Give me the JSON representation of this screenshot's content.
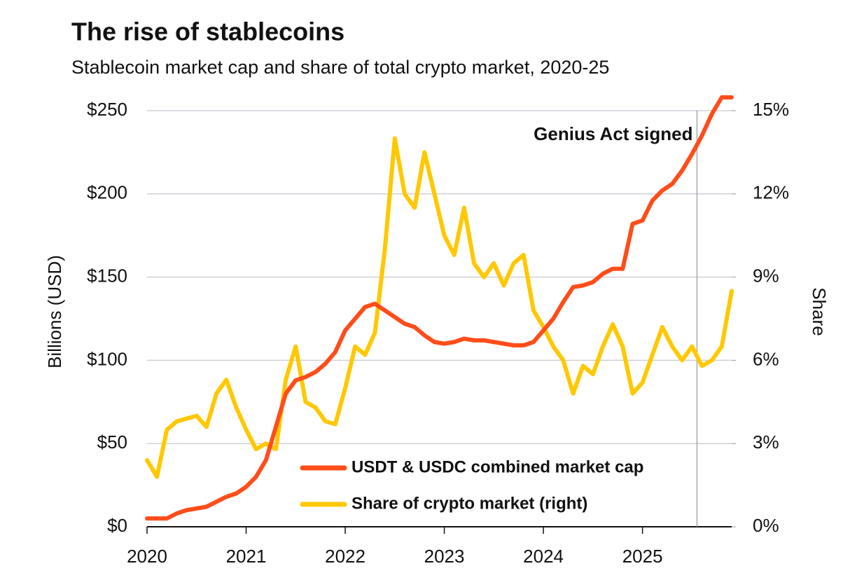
{
  "chart_data": {
    "type": "line",
    "title": "The rise of stablecoins",
    "subtitle": "Stablecoin market cap and share of total crypto market, 2020-25",
    "y_label": "Billions (USD)",
    "y2_label": "Share",
    "x": [
      2020.0,
      2020.1,
      2020.2,
      2020.3,
      2020.4,
      2020.5,
      2020.6,
      2020.7,
      2020.8,
      2020.9,
      2021.0,
      2021.1,
      2021.2,
      2021.3,
      2021.4,
      2021.5,
      2021.6,
      2021.7,
      2021.8,
      2021.9,
      2022.0,
      2022.1,
      2022.2,
      2022.3,
      2022.4,
      2022.5,
      2022.6,
      2022.7,
      2022.8,
      2022.9,
      2023.0,
      2023.1,
      2023.2,
      2023.3,
      2023.4,
      2023.5,
      2023.6,
      2023.7,
      2023.8,
      2023.9,
      2024.0,
      2024.1,
      2024.2,
      2024.3,
      2024.4,
      2024.5,
      2024.6,
      2024.7,
      2024.8,
      2024.9,
      2025.0,
      2025.1,
      2025.2,
      2025.3,
      2025.4,
      2025.5,
      2025.6,
      2025.7,
      2025.8,
      2025.9
    ],
    "series": [
      {
        "name": "USDT & USDC combined market cap",
        "color": "#ff4d1a",
        "axis": "y",
        "values": [
          5,
          5,
          5,
          8,
          10,
          11,
          12,
          15,
          18,
          20,
          24,
          30,
          40,
          60,
          80,
          88,
          90,
          93,
          98,
          105,
          118,
          125,
          132,
          134,
          130,
          126,
          122,
          120,
          115,
          111,
          110,
          111,
          113,
          112,
          112,
          111,
          110,
          109,
          109,
          111,
          118,
          125,
          135,
          144,
          145,
          147,
          152,
          155,
          155,
          182,
          184,
          196,
          202,
          206,
          214,
          224,
          235,
          248,
          258,
          258
        ]
      },
      {
        "name": "Share of crypto market (right)",
        "color": "#ffc800",
        "axis": "y2",
        "values": [
          2.4,
          1.8,
          3.5,
          3.8,
          3.9,
          4.0,
          3.6,
          4.8,
          5.3,
          4.3,
          3.5,
          2.8,
          3.0,
          2.8,
          5.3,
          6.5,
          4.5,
          4.3,
          3.8,
          3.7,
          5.0,
          6.5,
          6.2,
          7.0,
          10.0,
          14.0,
          12.0,
          11.5,
          13.5,
          12.0,
          10.5,
          9.8,
          11.5,
          9.5,
          9.0,
          9.5,
          8.7,
          9.5,
          9.8,
          7.8,
          7.2,
          6.5,
          6.0,
          4.8,
          5.8,
          5.5,
          6.5,
          7.3,
          6.5,
          4.8,
          5.2,
          6.2,
          7.2,
          6.5,
          6.0,
          6.5,
          5.8,
          6.0,
          6.5,
          8.5
        ]
      }
    ],
    "xlim": [
      2020,
      2025.9
    ],
    "xticks": [
      2020,
      2021,
      2022,
      2023,
      2024,
      2025
    ],
    "ylim": [
      0,
      250
    ],
    "yticks": [
      {
        "value": 0,
        "label": "$0"
      },
      {
        "value": 50,
        "label": "$50"
      },
      {
        "value": 100,
        "label": "$100"
      },
      {
        "value": 150,
        "label": "$150"
      },
      {
        "value": 200,
        "label": "$200"
      },
      {
        "value": 250,
        "label": "$250"
      }
    ],
    "y2lim": [
      0,
      15
    ],
    "y2ticks": [
      {
        "value": 0,
        "label": "0%"
      },
      {
        "value": 3,
        "label": "3%"
      },
      {
        "value": 6,
        "label": "6%"
      },
      {
        "value": 9,
        "label": "9%"
      },
      {
        "value": 12,
        "label": "12%"
      },
      {
        "value": 15,
        "label": "15%"
      }
    ],
    "grid": true,
    "legend": "bottom",
    "annotation": {
      "x": 2025.55,
      "text": "Genius Act signed"
    }
  }
}
